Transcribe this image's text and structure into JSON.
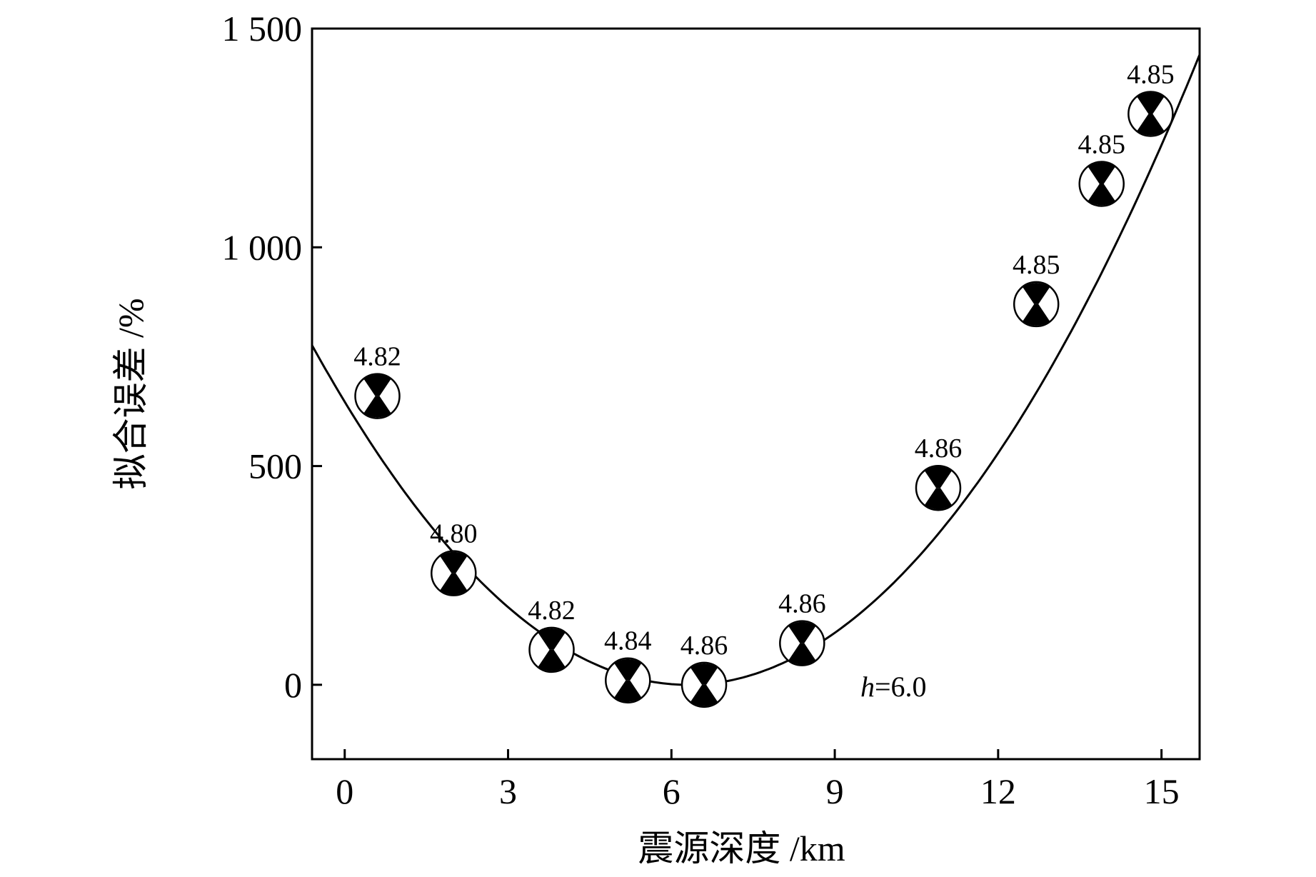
{
  "chart_data": {
    "type": "scatter",
    "xlabel": "震源深度 /km",
    "ylabel": "拟合误差 /%",
    "xlim": [
      -0.6,
      15.7
    ],
    "ylim": [
      -170,
      1500
    ],
    "xticks": [
      0,
      3,
      6,
      9,
      12,
      15
    ],
    "xtick_labels": [
      "0",
      "3",
      "6",
      "9",
      "12",
      "15"
    ],
    "yticks": [
      0,
      500,
      1000,
      1500
    ],
    "ytick_labels": [
      "0",
      "500",
      "1 000",
      "1 500"
    ],
    "grid": false,
    "annotation": {
      "italic": "h",
      "rest": "=6.0"
    },
    "points": [
      {
        "x": 0.6,
        "y": 660,
        "label": "4.82"
      },
      {
        "x": 2.0,
        "y": 255,
        "label": "4.80"
      },
      {
        "x": 3.8,
        "y": 80,
        "label": "4.82"
      },
      {
        "x": 5.2,
        "y": 10,
        "label": "4.84"
      },
      {
        "x": 6.6,
        "y": 0,
        "label": "4.86"
      },
      {
        "x": 8.4,
        "y": 95,
        "label": "4.86"
      },
      {
        "x": 10.9,
        "y": 450,
        "label": "4.86"
      },
      {
        "x": 12.7,
        "y": 870,
        "label": "4.85"
      },
      {
        "x": 13.9,
        "y": 1145,
        "label": "4.85"
      },
      {
        "x": 14.8,
        "y": 1305,
        "label": "4.85"
      }
    ],
    "fit_curve": {
      "type": "quadratic",
      "vertex_x": 6.3,
      "vertex_y": 0,
      "a": 16.3,
      "x_range": [
        -0.6,
        15.7
      ]
    }
  }
}
